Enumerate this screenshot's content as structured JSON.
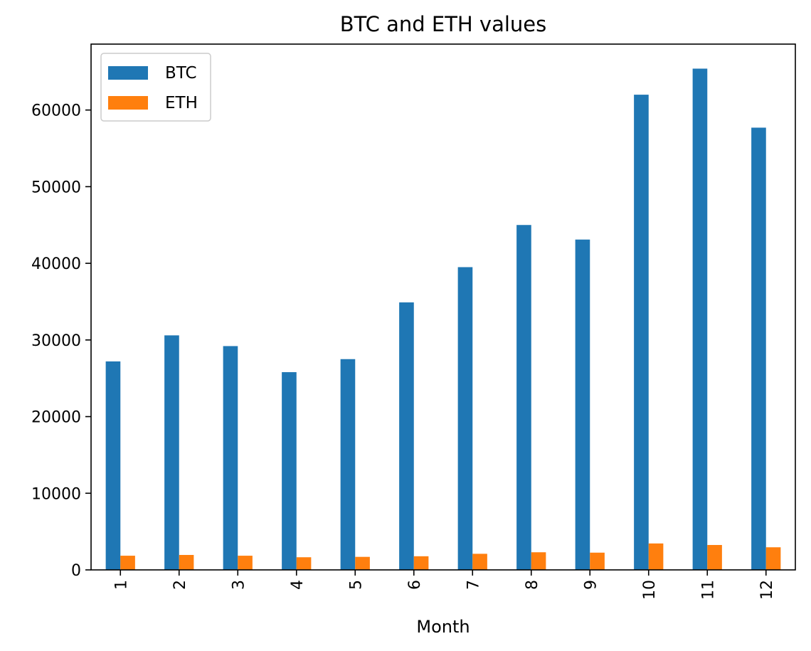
{
  "chart_data": {
    "type": "bar",
    "title": "BTC and ETH values",
    "xlabel": "Month",
    "ylabel": "",
    "categories": [
      "1",
      "2",
      "3",
      "4",
      "5",
      "6",
      "7",
      "8",
      "9",
      "10",
      "11",
      "12"
    ],
    "series": [
      {
        "name": "BTC",
        "color": "#1f77b4",
        "values": [
          27200,
          30600,
          29200,
          25800,
          27500,
          34900,
          39500,
          45000,
          43100,
          62000,
          65400,
          57700
        ]
      },
      {
        "name": "ETH",
        "color": "#ff7f0e",
        "values": [
          1850,
          1950,
          1850,
          1650,
          1700,
          1780,
          2100,
          2300,
          2250,
          3450,
          3250,
          2950
        ]
      }
    ],
    "ylim": [
      0,
      68600
    ],
    "yticks": [
      "0",
      "10000",
      "20000",
      "30000",
      "40000",
      "50000",
      "60000"
    ],
    "grid": false,
    "legend_position": "top-left"
  }
}
